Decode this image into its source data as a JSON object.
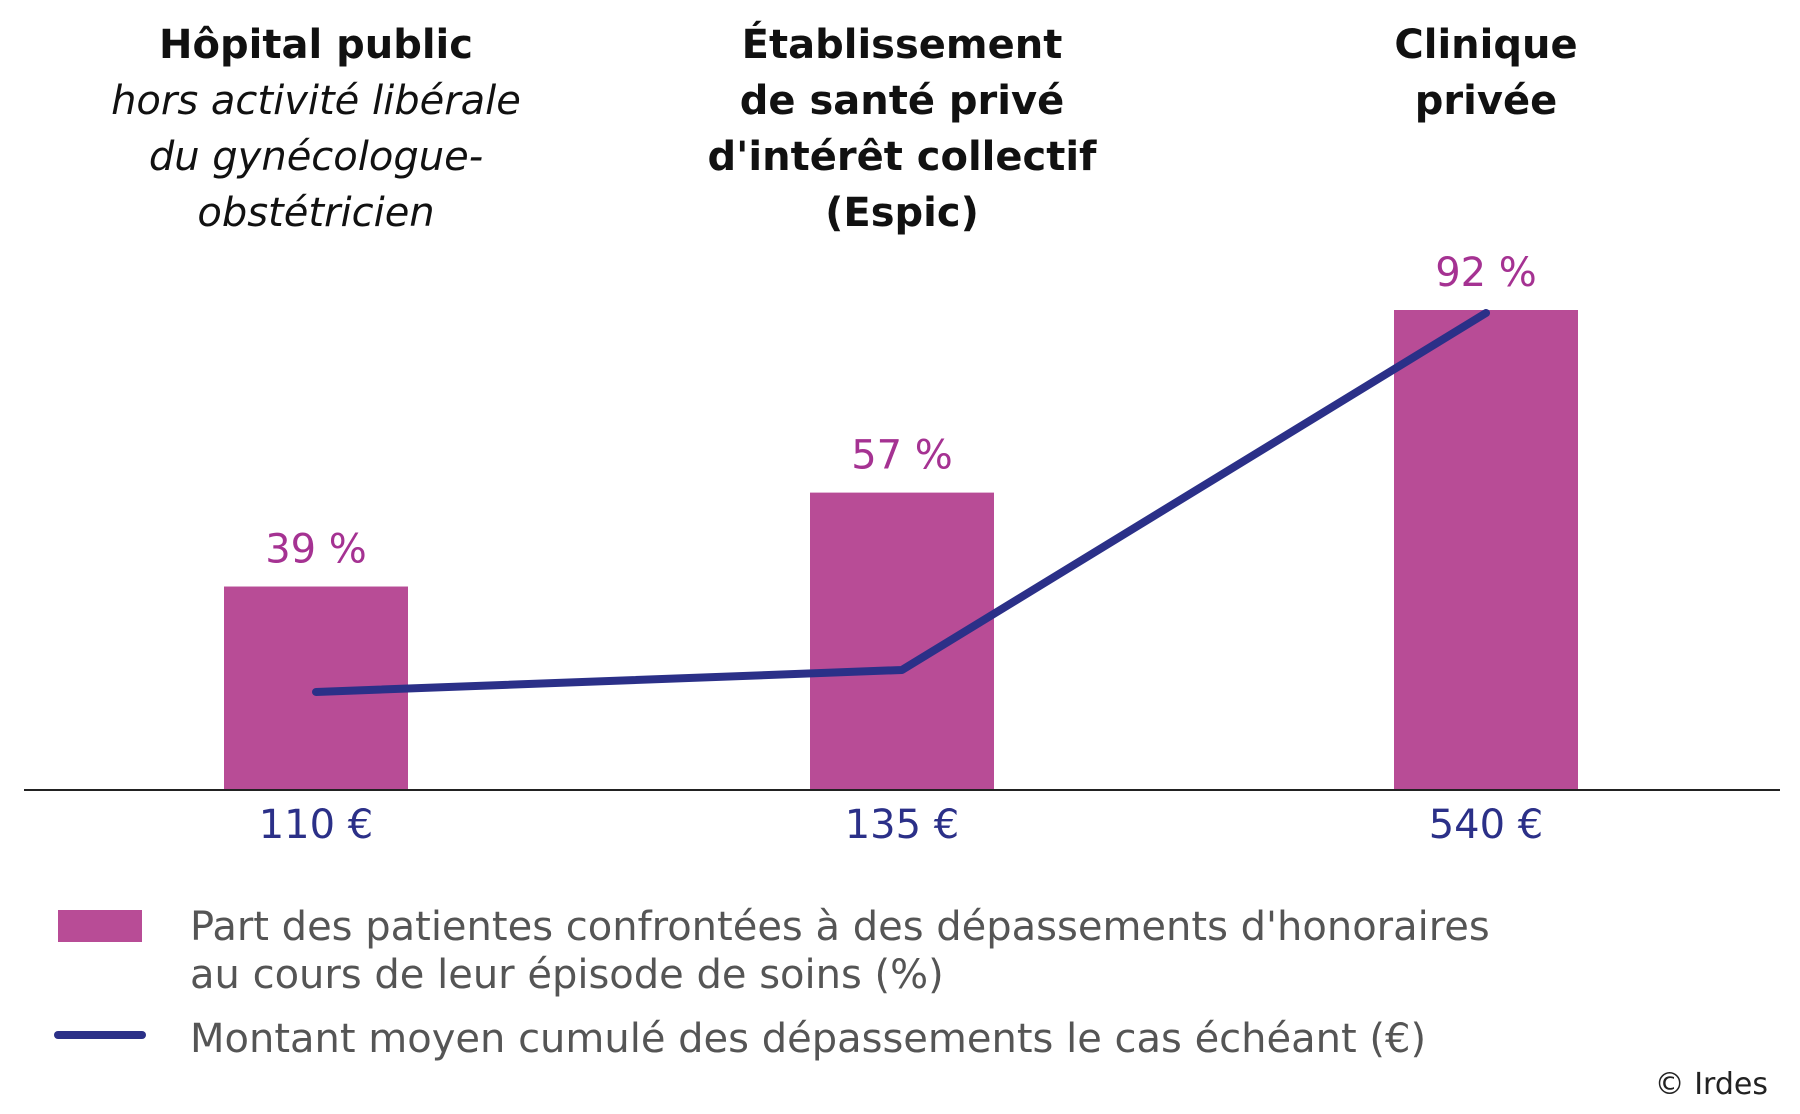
{
  "chart_data": {
    "type": "bar",
    "categories": [
      {
        "lines": [
          {
            "text": "Hôpital public",
            "style": "bold"
          },
          {
            "text": "hors activité libérale",
            "style": "italic"
          },
          {
            "text": "du gynécologue-",
            "style": "italic"
          },
          {
            "text": "obstétricien",
            "style": "italic"
          }
        ]
      },
      {
        "lines": [
          {
            "text": "Établissement",
            "style": "bold"
          },
          {
            "text": "de santé privé",
            "style": "bold"
          },
          {
            "text": "d'intérêt collectif",
            "style": "bold"
          },
          {
            "text": "(Espic)",
            "style": "bold"
          }
        ]
      },
      {
        "lines": [
          {
            "text": "Clinique",
            "style": "bold"
          },
          {
            "text": "privée",
            "style": "bold"
          }
        ]
      }
    ],
    "series": [
      {
        "name": "Part des patientes confrontées à des dépassements d'honoraires au cours de leur épisode de soins (%)",
        "type": "bar",
        "color": "#b84c96",
        "values": [
          39,
          57,
          92
        ],
        "labels": [
          "39 %",
          "57 %",
          "92 %"
        ]
      },
      {
        "name": "Montant moyen cumulé des dépassements le cas échéant (€)",
        "type": "line",
        "color": "#2b3088",
        "values": [
          110,
          135,
          540
        ],
        "labels": [
          "110 €",
          "135 €",
          "540 €"
        ]
      }
    ],
    "ylim_percent": [
      0,
      100
    ],
    "ylim_amount": [
      0,
      600
    ],
    "grid": false,
    "legend_position": "bottom-left",
    "legend": [
      {
        "type": "bar",
        "lines": [
          "Part des patientes confrontées à des dépassements d'honoraires",
          "au cours de leur épisode de soins (%)"
        ]
      },
      {
        "type": "line",
        "lines": [
          "Montant moyen cumulé des dépassements le cas échéant (€)"
        ]
      }
    ],
    "source": "© Irdes"
  }
}
